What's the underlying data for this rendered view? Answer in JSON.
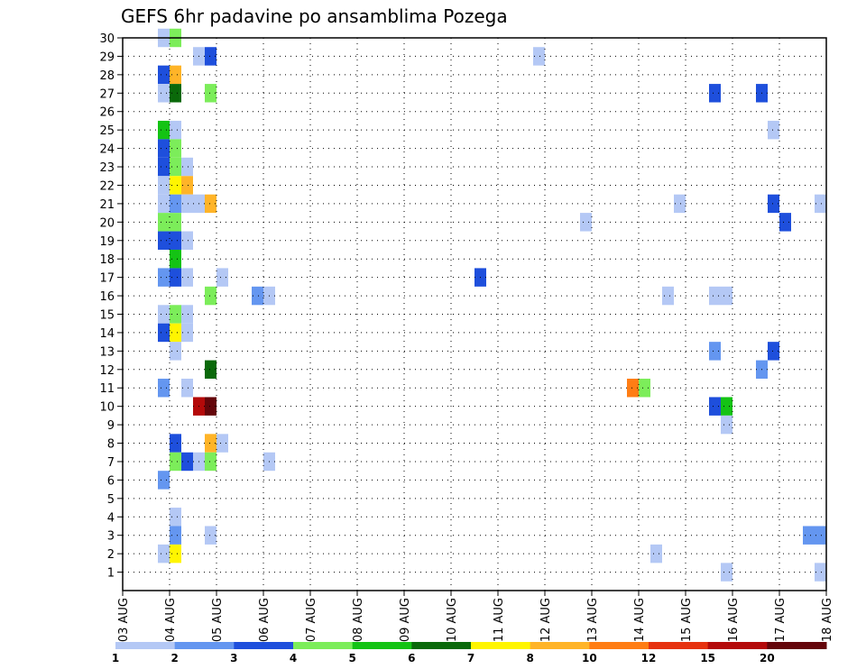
{
  "chart_data": {
    "type": "heatmap",
    "title": "GEFS 6hr padavine po ansamblima Pozega",
    "x_tick_labels": [
      "03 AUG",
      "04 AUG",
      "05 AUG",
      "06 AUG",
      "07 AUG",
      "08 AUG",
      "09 AUG",
      "10 AUG",
      "11 AUG",
      "12 AUG",
      "13 AUG",
      "14 AUG",
      "15 AUG",
      "16 AUG",
      "17 AUG",
      "18 AUG"
    ],
    "y_tick_labels": [
      "1",
      "2",
      "3",
      "4",
      "5",
      "6",
      "7",
      "8",
      "9",
      "10",
      "11",
      "12",
      "13",
      "14",
      "15",
      "16",
      "17",
      "18",
      "19",
      "20",
      "21",
      "22",
      "23",
      "24",
      "25",
      "26",
      "27",
      "28",
      "29",
      "30"
    ],
    "x_unit": "days since 03 AUG 00Z",
    "y_unit": "ensemble member",
    "xlim": [
      0,
      15
    ],
    "ylim": [
      0,
      30
    ],
    "cell_width_days": 0.25,
    "grid": true,
    "colorbar": {
      "colors": [
        "#b4c8f5",
        "#6496f0",
        "#1e4fdc",
        "#7ced5a",
        "#14c314",
        "#0a690a",
        "#fff500",
        "#ffb428",
        "#ff7d14",
        "#e6320f",
        "#b40a0a",
        "#64050a"
      ],
      "labels": [
        "1",
        "2",
        "3",
        "4",
        "5",
        "6",
        "7",
        "8",
        "10",
        "12",
        "15",
        "20"
      ]
    },
    "points": [
      {
        "t": 0.75,
        "m": 30,
        "c": 0
      },
      {
        "t": 1.0,
        "m": 30,
        "c": 3
      },
      {
        "t": 1.5,
        "m": 29,
        "c": 0
      },
      {
        "t": 1.75,
        "m": 29,
        "c": 2
      },
      {
        "t": 8.75,
        "m": 29,
        "c": 0
      },
      {
        "t": 0.75,
        "m": 28,
        "c": 2
      },
      {
        "t": 1.0,
        "m": 28,
        "c": 7
      },
      {
        "t": 0.75,
        "m": 27,
        "c": 0
      },
      {
        "t": 1.0,
        "m": 27,
        "c": 5
      },
      {
        "t": 1.75,
        "m": 27,
        "c": 3
      },
      {
        "t": 12.5,
        "m": 27,
        "c": 2
      },
      {
        "t": 13.5,
        "m": 27,
        "c": 2
      },
      {
        "t": 0.75,
        "m": 25,
        "c": 4
      },
      {
        "t": 1.0,
        "m": 25,
        "c": 0
      },
      {
        "t": 13.75,
        "m": 25,
        "c": 0
      },
      {
        "t": 0.75,
        "m": 24,
        "c": 2
      },
      {
        "t": 1.0,
        "m": 24,
        "c": 3
      },
      {
        "t": 0.75,
        "m": 23,
        "c": 2
      },
      {
        "t": 1.0,
        "m": 23,
        "c": 3
      },
      {
        "t": 1.25,
        "m": 23,
        "c": 0
      },
      {
        "t": 0.75,
        "m": 22,
        "c": 0
      },
      {
        "t": 1.0,
        "m": 22,
        "c": 6
      },
      {
        "t": 1.25,
        "m": 22,
        "c": 7
      },
      {
        "t": 0.75,
        "m": 21,
        "c": 0
      },
      {
        "t": 1.0,
        "m": 21,
        "c": 1
      },
      {
        "t": 1.25,
        "m": 21,
        "c": 0
      },
      {
        "t": 1.5,
        "m": 21,
        "c": 0
      },
      {
        "t": 1.75,
        "m": 21,
        "c": 7
      },
      {
        "t": 11.75,
        "m": 21,
        "c": 0
      },
      {
        "t": 13.75,
        "m": 21,
        "c": 2
      },
      {
        "t": 14.75,
        "m": 21,
        "c": 0
      },
      {
        "t": 0.75,
        "m": 20,
        "c": 3
      },
      {
        "t": 1.0,
        "m": 20,
        "c": 3
      },
      {
        "t": 9.75,
        "m": 20,
        "c": 0
      },
      {
        "t": 14.0,
        "m": 20,
        "c": 2
      },
      {
        "t": 0.75,
        "m": 19,
        "c": 2
      },
      {
        "t": 1.0,
        "m": 19,
        "c": 2
      },
      {
        "t": 1.25,
        "m": 19,
        "c": 0
      },
      {
        "t": 1.0,
        "m": 18,
        "c": 4
      },
      {
        "t": 0.75,
        "m": 17,
        "c": 1
      },
      {
        "t": 1.0,
        "m": 17,
        "c": 2
      },
      {
        "t": 1.25,
        "m": 17,
        "c": 0
      },
      {
        "t": 2.0,
        "m": 17,
        "c": 0
      },
      {
        "t": 7.5,
        "m": 17,
        "c": 2
      },
      {
        "t": 1.75,
        "m": 16,
        "c": 3
      },
      {
        "t": 2.75,
        "m": 16,
        "c": 1
      },
      {
        "t": 3.0,
        "m": 16,
        "c": 0
      },
      {
        "t": 11.5,
        "m": 16,
        "c": 0
      },
      {
        "t": 12.5,
        "m": 16,
        "c": 0
      },
      {
        "t": 12.75,
        "m": 16,
        "c": 0
      },
      {
        "t": 0.75,
        "m": 15,
        "c": 0
      },
      {
        "t": 1.0,
        "m": 15,
        "c": 3
      },
      {
        "t": 1.25,
        "m": 15,
        "c": 0
      },
      {
        "t": 0.75,
        "m": 14,
        "c": 2
      },
      {
        "t": 1.0,
        "m": 14,
        "c": 6
      },
      {
        "t": 1.25,
        "m": 14,
        "c": 0
      },
      {
        "t": 1.0,
        "m": 13,
        "c": 0
      },
      {
        "t": 12.5,
        "m": 13,
        "c": 1
      },
      {
        "t": 13.75,
        "m": 13,
        "c": 2
      },
      {
        "t": 1.75,
        "m": 12,
        "c": 5
      },
      {
        "t": 13.5,
        "m": 12,
        "c": 1
      },
      {
        "t": 0.75,
        "m": 11,
        "c": 1
      },
      {
        "t": 1.25,
        "m": 11,
        "c": 0
      },
      {
        "t": 10.75,
        "m": 11,
        "c": 8
      },
      {
        "t": 11.0,
        "m": 11,
        "c": 3
      },
      {
        "t": 1.5,
        "m": 10,
        "c": 10
      },
      {
        "t": 1.75,
        "m": 10,
        "c": 11
      },
      {
        "t": 12.5,
        "m": 10,
        "c": 2
      },
      {
        "t": 12.75,
        "m": 10,
        "c": 4
      },
      {
        "t": 12.75,
        "m": 9,
        "c": 0
      },
      {
        "t": 1.0,
        "m": 8,
        "c": 2
      },
      {
        "t": 1.75,
        "m": 8,
        "c": 7
      },
      {
        "t": 2.0,
        "m": 8,
        "c": 0
      },
      {
        "t": 1.0,
        "m": 7,
        "c": 3
      },
      {
        "t": 1.25,
        "m": 7,
        "c": 2
      },
      {
        "t": 1.5,
        "m": 7,
        "c": 0
      },
      {
        "t": 1.75,
        "m": 7,
        "c": 3
      },
      {
        "t": 3.0,
        "m": 7,
        "c": 0
      },
      {
        "t": 0.75,
        "m": 6,
        "c": 1
      },
      {
        "t": 1.0,
        "m": 4,
        "c": 0
      },
      {
        "t": 1.0,
        "m": 3,
        "c": 1
      },
      {
        "t": 1.75,
        "m": 3,
        "c": 0
      },
      {
        "t": 14.5,
        "m": 3,
        "c": 1
      },
      {
        "t": 14.75,
        "m": 3,
        "c": 1
      },
      {
        "t": 0.75,
        "m": 2,
        "c": 0
      },
      {
        "t": 1.0,
        "m": 2,
        "c": 6
      },
      {
        "t": 11.25,
        "m": 2,
        "c": 0
      },
      {
        "t": 12.75,
        "m": 1,
        "c": 0
      },
      {
        "t": 14.75,
        "m": 1,
        "c": 0
      }
    ]
  }
}
